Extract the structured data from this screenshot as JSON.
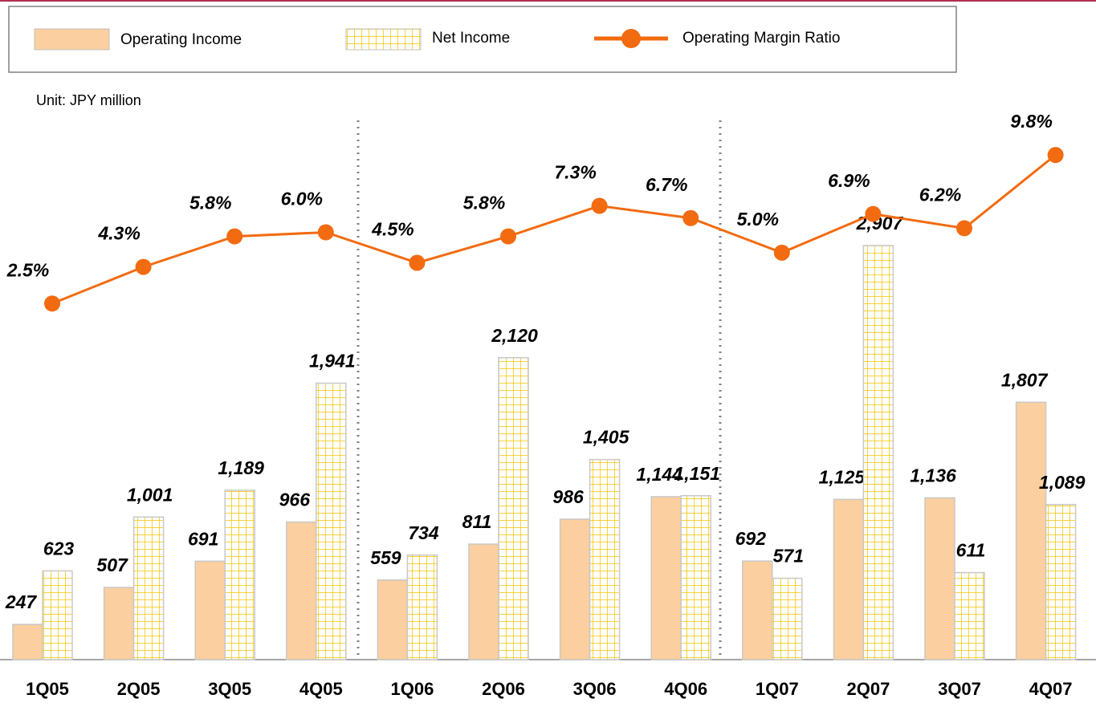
{
  "chart_data": {
    "type": "bar",
    "subtitle": "Unit: JPY million",
    "legend": "top",
    "categories": [
      "1Q05",
      "2Q05",
      "3Q05",
      "4Q05",
      "1Q06",
      "2Q06",
      "3Q06",
      "4Q06",
      "1Q07",
      "2Q07",
      "3Q07",
      "4Q07"
    ],
    "ylim": [
      0,
      4000
    ],
    "y2lim": [
      -15,
      13
    ],
    "series": [
      {
        "name": "Operating Income",
        "type": "bar",
        "color": "#fbcf9f",
        "values": [
          247,
          507,
          691,
          966,
          559,
          811,
          986,
          1144,
          692,
          1125,
          1136,
          1807
        ],
        "value_labels": [
          "247",
          "507",
          "691",
          "966",
          "559",
          "811",
          "986",
          "1,144",
          "692",
          "1,125",
          "1,136",
          "1,807"
        ]
      },
      {
        "name": "Net Income",
        "type": "bar",
        "color": "#f5c400",
        "values": [
          623,
          1001,
          1189,
          1941,
          734,
          2120,
          1405,
          1151,
          571,
          2907,
          611,
          1089
        ],
        "value_labels": [
          "623",
          "1,001",
          "1,189",
          "1,941",
          "734",
          "2,120",
          "1,405",
          "1,151",
          "571",
          "2,907",
          "611",
          "1,089"
        ]
      },
      {
        "name": "Operating Margin Ratio",
        "type": "line",
        "axis": "y2",
        "color": "#f26b10",
        "values": [
          2.5,
          4.3,
          5.8,
          6.0,
          4.5,
          5.8,
          7.3,
          6.7,
          5.0,
          6.9,
          6.2,
          9.8
        ],
        "value_labels": [
          "2.5%",
          "4.3%",
          "5.8%",
          "6.0%",
          "4.5%",
          "5.8%",
          "7.3%",
          "6.7%",
          "5.0%",
          "6.9%",
          "6.2%",
          "9.8%"
        ]
      }
    ]
  }
}
